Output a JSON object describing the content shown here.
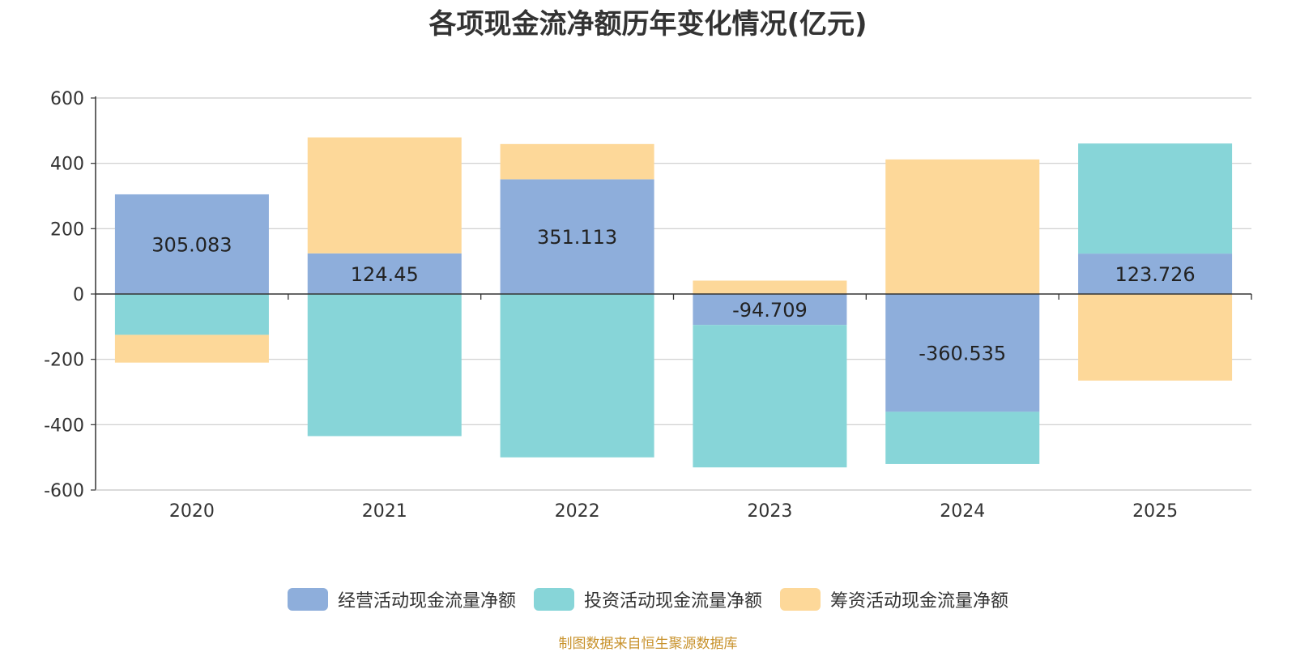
{
  "chart_data": {
    "type": "bar",
    "stacked": true,
    "title": "各项现金流净额历年变化情况(亿元)",
    "xlabel": "",
    "ylabel": "",
    "ylim": [
      -600,
      600
    ],
    "yticks": [
      600,
      400,
      200,
      0,
      -200,
      -400,
      -600
    ],
    "categories": [
      "2020",
      "2021",
      "2022",
      "2023",
      "2024",
      "2025"
    ],
    "series": [
      {
        "name": "经营活动现金流量净额",
        "color": "#8eaedb",
        "values": [
          305.083,
          124.45,
          351.113,
          -94.709,
          -360.535,
          123.726
        ],
        "labels": [
          "305.083",
          "124.45",
          "351.113",
          "-94.709",
          "-360.535",
          "123.726"
        ]
      },
      {
        "name": "投资活动现金流量净额",
        "color": "#87d5d8",
        "values": [
          -125,
          -435,
          -500,
          -436,
          -160,
          337
        ]
      },
      {
        "name": "筹资活动现金流量净额",
        "color": "#fdd899",
        "values": [
          -85,
          355,
          108,
          41,
          412,
          -265
        ]
      }
    ],
    "legend_position": "bottom-center",
    "grid": true
  },
  "source_note": "制图数据来自恒生聚源数据库"
}
